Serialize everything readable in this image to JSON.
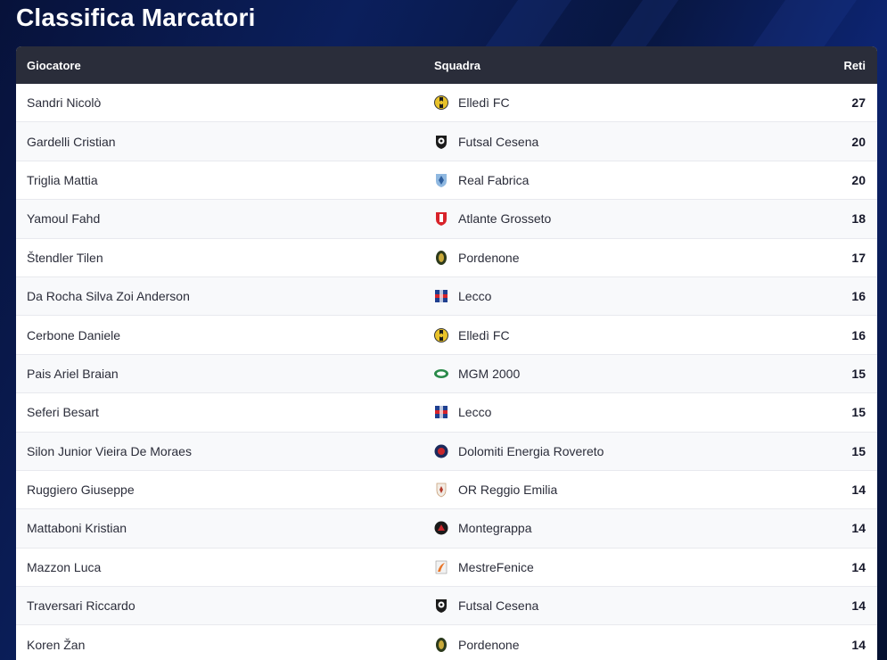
{
  "page": {
    "title": "Classifica Marcatori"
  },
  "table": {
    "headers": {
      "player": "Giocatore",
      "team": "Squadra",
      "goals": "Reti"
    },
    "rows": [
      {
        "player": "Sandri Nicolò",
        "team": "Elledì FC",
        "goals": "27",
        "logo": "elledi-logo-icon"
      },
      {
        "player": "Gardelli Cristian",
        "team": "Futsal Cesena",
        "goals": "20",
        "logo": "futsal-cesena-logo-icon"
      },
      {
        "player": "Triglia Mattia",
        "team": "Real Fabrica",
        "goals": "20",
        "logo": "real-fabrica-logo-icon"
      },
      {
        "player": "Yamoul Fahd",
        "team": "Atlante Grosseto",
        "goals": "18",
        "logo": "atlante-grosseto-logo-icon"
      },
      {
        "player": "Štendler Tilen",
        "team": "Pordenone",
        "goals": "17",
        "logo": "pordenone-logo-icon"
      },
      {
        "player": "Da Rocha Silva Zoi Anderson",
        "team": "Lecco",
        "goals": "16",
        "logo": "lecco-logo-icon"
      },
      {
        "player": "Cerbone Daniele",
        "team": "Elledì FC",
        "goals": "16",
        "logo": "elledi-logo-icon"
      },
      {
        "player": "Pais Ariel Braian",
        "team": "MGM 2000",
        "goals": "15",
        "logo": "mgm-2000-logo-icon"
      },
      {
        "player": "Seferi Besart",
        "team": "Lecco",
        "goals": "15",
        "logo": "lecco-logo-icon"
      },
      {
        "player": "Silon Junior Vieira De Moraes",
        "team": "Dolomiti Energia Rovereto",
        "goals": "15",
        "logo": "dolomiti-rovereto-logo-icon"
      },
      {
        "player": "Ruggiero Giuseppe",
        "team": "OR Reggio Emilia",
        "goals": "14",
        "logo": "or-reggio-emilia-logo-icon"
      },
      {
        "player": "Mattaboni Kristian",
        "team": "Montegrappa",
        "goals": "14",
        "logo": "montegrappa-logo-icon"
      },
      {
        "player": "Mazzon Luca",
        "team": "MestreFenice",
        "goals": "14",
        "logo": "mestrefenice-logo-icon"
      },
      {
        "player": "Traversari Riccardo",
        "team": "Futsal Cesena",
        "goals": "14",
        "logo": "futsal-cesena-logo-icon"
      },
      {
        "player": "Koren Žan",
        "team": "Pordenone",
        "goals": "14",
        "logo": "pordenone-logo-icon"
      }
    ]
  }
}
